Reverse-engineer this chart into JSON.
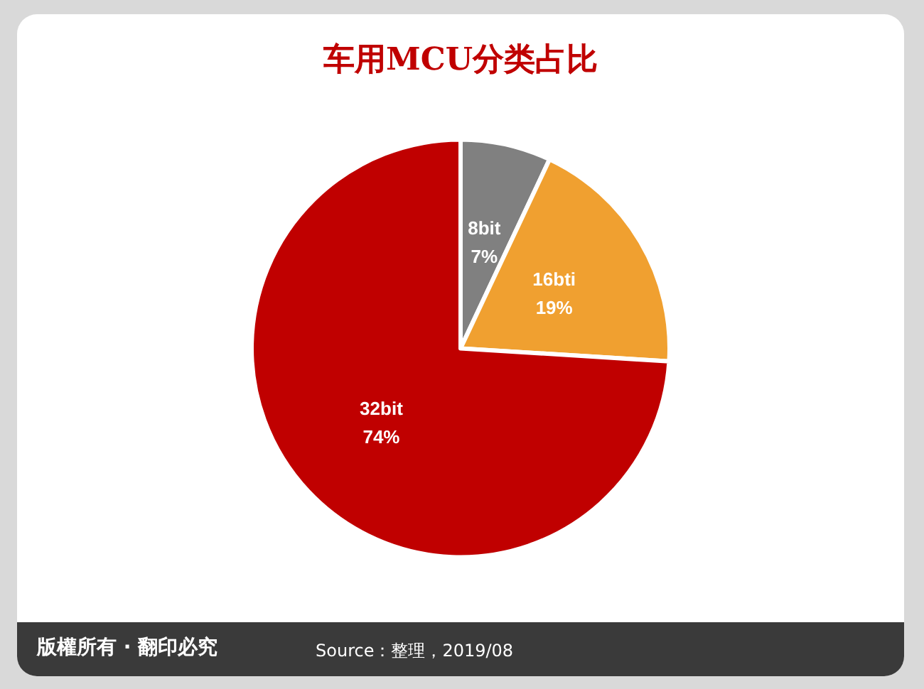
{
  "chart_data": {
    "type": "pie",
    "title": "车用MCU分类占比",
    "categories": [
      "8bit",
      "16bti",
      "32bit"
    ],
    "values": [
      7,
      19,
      74
    ],
    "colors": [
      "#808080",
      "#f0a030",
      "#c00000"
    ],
    "value_labels": [
      "7%",
      "19%",
      "74%"
    ],
    "legend": false,
    "annotations": [
      "版權所有 · 翻印必究",
      "Source：整理，2019/08"
    ]
  }
}
